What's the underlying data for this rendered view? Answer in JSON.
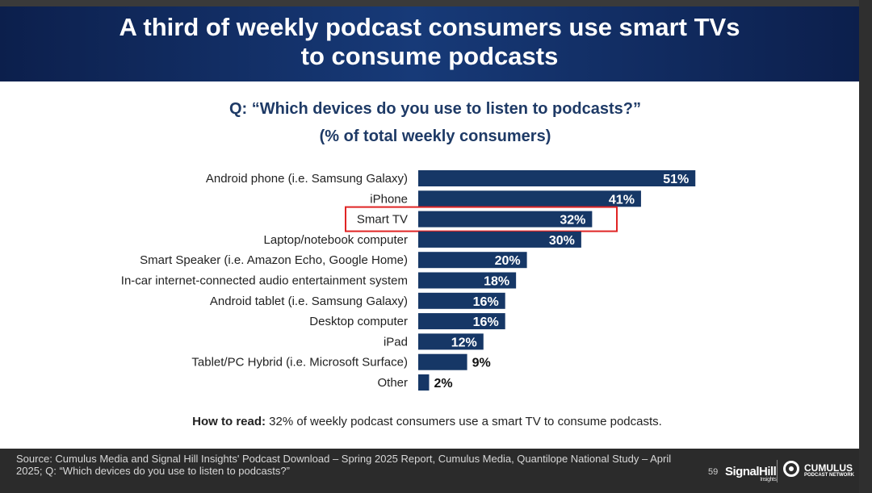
{
  "header": {
    "title_line1": "A third of weekly podcast consumers use smart TVs",
    "title_line2": "to consume podcasts"
  },
  "chart_data": {
    "type": "bar",
    "orientation": "horizontal",
    "title": "Q: “Which devices do you use to listen to podcasts?”",
    "subtitle": "(% of total weekly consumers)",
    "categories": [
      "Android phone (i.e. Samsung Galaxy)",
      "iPhone",
      "Smart TV",
      "Laptop/notebook computer",
      "Smart Speaker (i.e. Amazon Echo, Google Home)",
      "In-car internet-connected audio entertainment system",
      "Android tablet (i.e. Samsung Galaxy)",
      "Desktop computer",
      "iPad",
      "Tablet/PC Hybrid (i.e. Microsoft Surface)",
      "Other"
    ],
    "values": [
      51,
      41,
      32,
      30,
      20,
      18,
      16,
      16,
      12,
      9,
      2
    ],
    "value_labels": [
      "51%",
      "41%",
      "32%",
      "30%",
      "20%",
      "18%",
      "16%",
      "16%",
      "12%",
      "9%",
      "2%"
    ],
    "highlight_category": "Smart TV",
    "bar_color": "#163766",
    "highlight_color": "#e02424",
    "xlim": [
      0,
      55
    ],
    "grid": false,
    "legend": "none"
  },
  "how_to_read": {
    "label": "How to read:",
    "text": " 32% of weekly podcast consumers use a smart TV to consume podcasts."
  },
  "footer": {
    "source": "Source: Cumulus Media and Signal Hill Insights' Podcast Download – Spring 2025 Report, Cumulus Media, Quantilope National Study – April 2025; Q: “Which devices do you use to listen to podcasts?”",
    "page_number": "59",
    "logo_signalhill": "SignalHill",
    "logo_signalhill_sub": "Insights",
    "logo_cumulus": "CUMULUS",
    "logo_cumulus_sub": "PODCAST NETWORK"
  }
}
